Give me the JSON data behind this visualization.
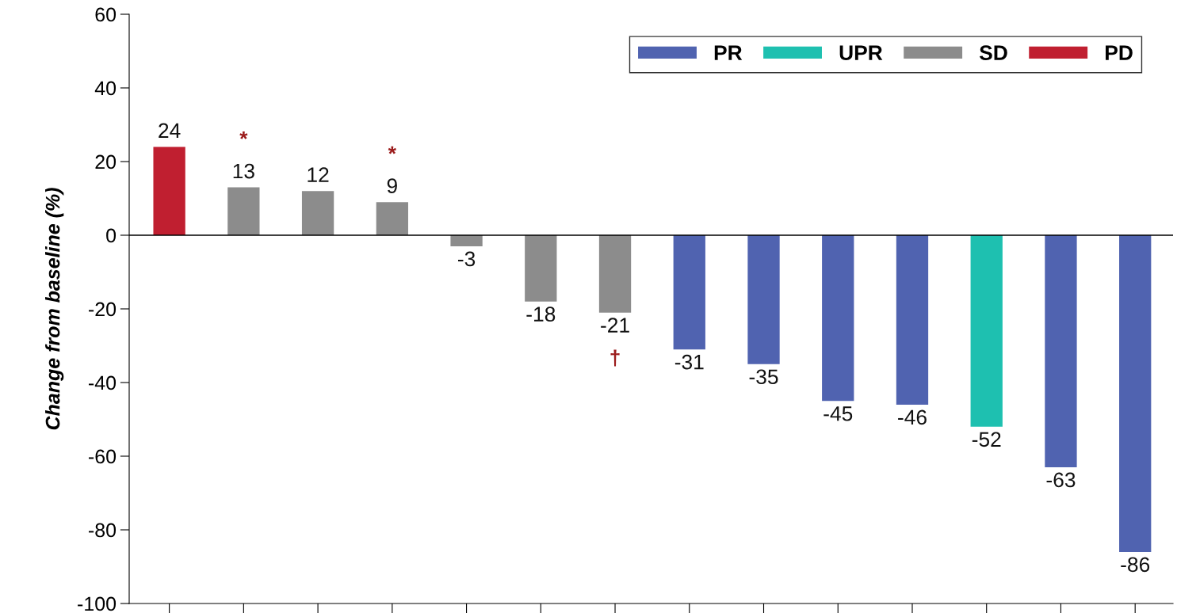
{
  "chart_data": {
    "type": "bar",
    "ylabel": "Change from baseline (%)",
    "categories": [
      null,
      null,
      null,
      null,
      null,
      null,
      null,
      null,
      null,
      null,
      null,
      null,
      null,
      null
    ],
    "stacked": true,
    "ylim": [
      -100,
      60
    ],
    "yticks": [
      -100,
      -80,
      -60,
      -40,
      -20,
      0,
      20,
      40,
      60
    ],
    "series": [
      {
        "name": "PR",
        "color": "#5063b0",
        "values": [
          null,
          null,
          null,
          null,
          null,
          null,
          null,
          -31,
          -35,
          -45,
          -46,
          null,
          -63,
          -86
        ],
        "value_labels": [
          null,
          null,
          null,
          null,
          null,
          null,
          null,
          "-31",
          "-35",
          "-45",
          "-46",
          null,
          "-63",
          "-86"
        ]
      },
      {
        "name": "UPR",
        "color": "#1ec0b0",
        "values": [
          null,
          null,
          null,
          null,
          null,
          null,
          null,
          null,
          null,
          null,
          null,
          -52,
          null,
          null
        ],
        "value_labels": [
          null,
          null,
          null,
          null,
          null,
          null,
          null,
          null,
          null,
          null,
          null,
          "-52",
          null,
          null
        ]
      },
      {
        "name": "SD",
        "color": "#8c8c8c",
        "values": [
          null,
          13,
          12,
          9,
          -3,
          -18,
          -21,
          null,
          null,
          null,
          null,
          null,
          null,
          null
        ],
        "value_labels": [
          null,
          "*\n13",
          "12",
          "*\n9",
          "-3",
          "-18",
          "-21\n†",
          null,
          null,
          null,
          null,
          null,
          null,
          null
        ]
      },
      {
        "name": "PD",
        "color": "#c01f30",
        "values": [
          24,
          null,
          null,
          null,
          null,
          null,
          null,
          null,
          null,
          null,
          null,
          null,
          null,
          null
        ],
        "value_labels": [
          "24",
          null,
          null,
          null,
          null,
          null,
          null,
          null,
          null,
          null,
          null,
          null,
          null,
          null
        ]
      }
    ],
    "ref_lines": [
      {
        "axis": "y",
        "value": 0,
        "label": null,
        "color": "#000000"
      }
    ],
    "legend": "top right",
    "grid": false
  }
}
